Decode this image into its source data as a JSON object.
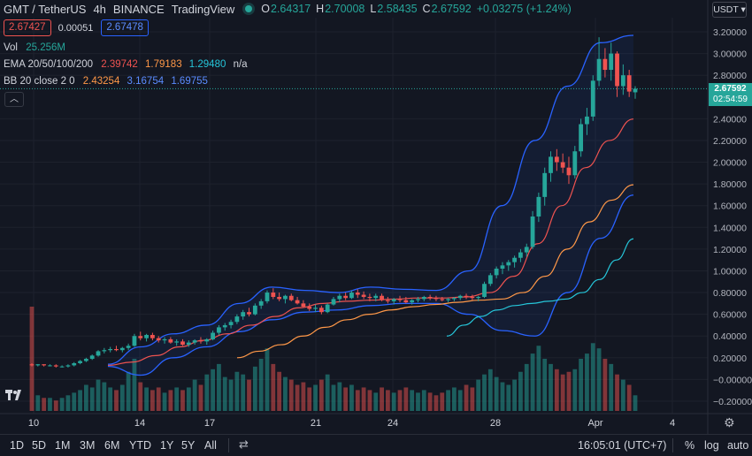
{
  "header": {
    "symbol": "GMT / TetherUS",
    "interval": "4h",
    "exchange": "BINANCE",
    "source": "TradingView",
    "ohlc": {
      "o_label": "O",
      "o": "2.64317",
      "h_label": "H",
      "h": "2.70008",
      "l_label": "L",
      "l": "2.58435",
      "c_label": "C",
      "c": "2.67592",
      "change": "+0.03275 (+1.24%)"
    },
    "bid": "2.67427",
    "spread": "0.00051",
    "ask": "2.67478",
    "currency": "USDT"
  },
  "indicators": {
    "vol": {
      "label": "Vol",
      "value": "25.256M"
    },
    "ema": {
      "label": "EMA 20/50/100/200",
      "values": [
        "2.39742",
        "1.79183",
        "1.29480",
        "n/a"
      ]
    },
    "bb": {
      "label": "BB 20 close 2 0",
      "values": [
        "2.43254",
        "3.16754",
        "1.69755"
      ]
    }
  },
  "price_axis": {
    "ticks": [
      "3.20000",
      "3.00000",
      "2.80000",
      "2.40000",
      "2.20000",
      "2.00000",
      "1.80000",
      "1.60000",
      "1.40000",
      "1.20000",
      "1.00000",
      "0.80000",
      "0.60000",
      "0.40000",
      "0.20000",
      "−0.00000",
      "−0.20000"
    ],
    "last_price": "2.67592",
    "countdown": "02:54:59"
  },
  "time_axis": {
    "ticks": [
      "10",
      "14",
      "17",
      "21",
      "24",
      "28",
      "Apr",
      "4"
    ]
  },
  "chart_data": {
    "type": "candlestick",
    "symbol": "GMT / TetherUS",
    "interval": "4h",
    "ylim": [
      -0.25,
      3.3
    ],
    "last_close": 2.67592,
    "candles": [
      [
        0.14,
        0.15,
        0.12,
        0.13
      ],
      [
        0.13,
        0.14,
        0.12,
        0.14
      ],
      [
        0.14,
        0.14,
        0.12,
        0.13
      ],
      [
        0.13,
        0.14,
        0.12,
        0.13
      ],
      [
        0.13,
        0.14,
        0.11,
        0.12
      ],
      [
        0.12,
        0.13,
        0.11,
        0.12
      ],
      [
        0.12,
        0.14,
        0.11,
        0.13
      ],
      [
        0.13,
        0.16,
        0.12,
        0.15
      ],
      [
        0.15,
        0.18,
        0.14,
        0.17
      ],
      [
        0.17,
        0.2,
        0.16,
        0.19
      ],
      [
        0.19,
        0.23,
        0.18,
        0.22
      ],
      [
        0.22,
        0.27,
        0.21,
        0.26
      ],
      [
        0.26,
        0.29,
        0.24,
        0.27
      ],
      [
        0.27,
        0.3,
        0.25,
        0.28
      ],
      [
        0.28,
        0.31,
        0.26,
        0.27
      ],
      [
        0.27,
        0.3,
        0.25,
        0.29
      ],
      [
        0.29,
        0.33,
        0.27,
        0.31
      ],
      [
        0.31,
        0.42,
        0.3,
        0.4
      ],
      [
        0.4,
        0.44,
        0.36,
        0.38
      ],
      [
        0.38,
        0.42,
        0.35,
        0.41
      ],
      [
        0.41,
        0.43,
        0.36,
        0.38
      ],
      [
        0.38,
        0.4,
        0.34,
        0.36
      ],
      [
        0.36,
        0.39,
        0.33,
        0.37
      ],
      [
        0.37,
        0.39,
        0.33,
        0.34
      ],
      [
        0.34,
        0.37,
        0.31,
        0.35
      ],
      [
        0.35,
        0.37,
        0.31,
        0.32
      ],
      [
        0.32,
        0.36,
        0.3,
        0.34
      ],
      [
        0.34,
        0.37,
        0.32,
        0.36
      ],
      [
        0.36,
        0.39,
        0.33,
        0.35
      ],
      [
        0.35,
        0.38,
        0.32,
        0.37
      ],
      [
        0.37,
        0.45,
        0.36,
        0.43
      ],
      [
        0.43,
        0.5,
        0.41,
        0.48
      ],
      [
        0.48,
        0.52,
        0.45,
        0.5
      ],
      [
        0.5,
        0.55,
        0.47,
        0.53
      ],
      [
        0.53,
        0.6,
        0.51,
        0.58
      ],
      [
        0.58,
        0.64,
        0.55,
        0.62
      ],
      [
        0.62,
        0.66,
        0.58,
        0.6
      ],
      [
        0.6,
        0.7,
        0.59,
        0.68
      ],
      [
        0.68,
        0.74,
        0.65,
        0.72
      ],
      [
        0.72,
        0.82,
        0.7,
        0.8
      ],
      [
        0.8,
        0.84,
        0.74,
        0.76
      ],
      [
        0.76,
        0.8,
        0.72,
        0.74
      ],
      [
        0.74,
        0.78,
        0.7,
        0.77
      ],
      [
        0.77,
        0.79,
        0.72,
        0.73
      ],
      [
        0.73,
        0.76,
        0.69,
        0.7
      ],
      [
        0.7,
        0.73,
        0.66,
        0.67
      ],
      [
        0.67,
        0.7,
        0.63,
        0.65
      ],
      [
        0.65,
        0.69,
        0.62,
        0.66
      ],
      [
        0.66,
        0.68,
        0.6,
        0.62
      ],
      [
        0.62,
        0.7,
        0.61,
        0.69
      ],
      [
        0.69,
        0.76,
        0.68,
        0.74
      ],
      [
        0.74,
        0.79,
        0.71,
        0.77
      ],
      [
        0.77,
        0.8,
        0.73,
        0.75
      ],
      [
        0.75,
        0.82,
        0.74,
        0.8
      ],
      [
        0.8,
        0.83,
        0.75,
        0.78
      ],
      [
        0.78,
        0.81,
        0.74,
        0.76
      ],
      [
        0.76,
        0.79,
        0.72,
        0.75
      ],
      [
        0.75,
        0.79,
        0.72,
        0.77
      ],
      [
        0.77,
        0.79,
        0.72,
        0.73
      ],
      [
        0.73,
        0.76,
        0.7,
        0.72
      ],
      [
        0.72,
        0.75,
        0.69,
        0.74
      ],
      [
        0.74,
        0.77,
        0.71,
        0.73
      ],
      [
        0.73,
        0.76,
        0.7,
        0.71
      ],
      [
        0.71,
        0.74,
        0.69,
        0.73
      ],
      [
        0.73,
        0.76,
        0.71,
        0.74
      ],
      [
        0.74,
        0.77,
        0.72,
        0.76
      ],
      [
        0.76,
        0.78,
        0.73,
        0.75
      ],
      [
        0.75,
        0.77,
        0.72,
        0.74
      ],
      [
        0.74,
        0.76,
        0.72,
        0.73
      ],
      [
        0.73,
        0.75,
        0.71,
        0.74
      ],
      [
        0.74,
        0.76,
        0.72,
        0.75
      ],
      [
        0.75,
        0.78,
        0.73,
        0.77
      ],
      [
        0.77,
        0.79,
        0.74,
        0.76
      ],
      [
        0.76,
        0.78,
        0.73,
        0.75
      ],
      [
        0.75,
        0.77,
        0.72,
        0.76
      ],
      [
        0.76,
        0.9,
        0.75,
        0.88
      ],
      [
        0.88,
        0.98,
        0.86,
        0.96
      ],
      [
        0.96,
        1.04,
        0.93,
        1.02
      ],
      [
        1.02,
        1.08,
        0.97,
        1.05
      ],
      [
        1.05,
        1.1,
        1.0,
        1.08
      ],
      [
        1.08,
        1.14,
        1.03,
        1.12
      ],
      [
        1.12,
        1.2,
        1.08,
        1.17
      ],
      [
        1.17,
        1.25,
        1.13,
        1.22
      ],
      [
        1.22,
        1.55,
        1.2,
        1.5
      ],
      [
        1.5,
        1.72,
        1.45,
        1.68
      ],
      [
        1.68,
        1.95,
        1.6,
        1.9
      ],
      [
        1.9,
        2.1,
        1.82,
        2.05
      ],
      [
        2.05,
        2.12,
        1.92,
        2.0
      ],
      [
        2.0,
        2.08,
        1.9,
        1.95
      ],
      [
        1.95,
        2.05,
        1.8,
        1.88
      ],
      [
        1.88,
        2.15,
        1.85,
        2.1
      ],
      [
        2.1,
        2.4,
        2.05,
        2.35
      ],
      [
        2.35,
        2.5,
        2.25,
        2.42
      ],
      [
        2.42,
        2.8,
        2.38,
        2.75
      ],
      [
        2.75,
        3.15,
        2.7,
        2.95
      ],
      [
        2.95,
        3.05,
        2.78,
        2.85
      ],
      [
        2.85,
        3.1,
        2.75,
        3.0
      ],
      [
        3.0,
        3.02,
        2.6,
        2.7
      ],
      [
        2.7,
        2.9,
        2.62,
        2.8
      ],
      [
        2.8,
        2.85,
        2.6,
        2.65
      ],
      [
        2.64317,
        2.70008,
        2.58435,
        2.67592
      ]
    ],
    "ema20": [
      0.13,
      0.16,
      0.22,
      0.3,
      0.36,
      0.42,
      0.5,
      0.58,
      0.66,
      0.7,
      0.72,
      0.73,
      0.74,
      0.75,
      0.75,
      0.76,
      0.8,
      0.95,
      1.25,
      1.6,
      1.95,
      2.2,
      2.39742
    ],
    "ema50": [
      0.2,
      0.26,
      0.32,
      0.4,
      0.48,
      0.55,
      0.6,
      0.64,
      0.67,
      0.69,
      0.71,
      0.73,
      0.74,
      0.8,
      0.95,
      1.2,
      1.45,
      1.65,
      1.79183
    ],
    "ema100": [
      0.4,
      0.5,
      0.58,
      0.64,
      0.68,
      0.7,
      0.72,
      0.74,
      0.8,
      0.92,
      1.1,
      1.2948
    ],
    "bb_upper": [
      0.14,
      0.3,
      0.42,
      0.5,
      0.7,
      0.85,
      0.82,
      0.8,
      0.85,
      0.83,
      0.82,
      1.0,
      1.6,
      2.2,
      2.7,
      3.1,
      3.16754
    ],
    "bb_lower": [
      0.12,
      0.04,
      0.2,
      0.3,
      0.44,
      0.55,
      0.62,
      0.64,
      0.68,
      0.7,
      0.7,
      0.6,
      0.45,
      0.4,
      0.8,
      1.3,
      1.69755
    ],
    "volumes": [
      40,
      6,
      5,
      5,
      4,
      5,
      6,
      7,
      8,
      10,
      9,
      12,
      11,
      9,
      8,
      10,
      15,
      20,
      11,
      9,
      8,
      9,
      7,
      8,
      9,
      8,
      9,
      12,
      10,
      14,
      16,
      18,
      13,
      12,
      15,
      14,
      12,
      17,
      20,
      24,
      18,
      15,
      13,
      12,
      10,
      11,
      9,
      10,
      12,
      14,
      10,
      11,
      9,
      10,
      8,
      9,
      8,
      7,
      9,
      8,
      7,
      8,
      9,
      8,
      7,
      8,
      7,
      6,
      7,
      8,
      9,
      8,
      10,
      9,
      12,
      14,
      16,
      13,
      11,
      10,
      12,
      15,
      18,
      22,
      25,
      20,
      18,
      16,
      14,
      15,
      16,
      20,
      22,
      26,
      24,
      20,
      18,
      14,
      12,
      10,
      6
    ]
  },
  "bottombar": {
    "ranges": [
      "1D",
      "5D",
      "1M",
      "3M",
      "6M",
      "YTD",
      "1Y",
      "5Y",
      "All"
    ],
    "clock": "16:05:01 (UTC+7)",
    "percent": "%",
    "log": "log",
    "auto": "auto"
  },
  "colors": {
    "bg": "#131722",
    "up": "#26a69a",
    "down": "#ef5350",
    "ema20": "#ef5350",
    "ema50": "#ff9848",
    "ema100": "#26c6da",
    "bb": "#2962ff"
  }
}
